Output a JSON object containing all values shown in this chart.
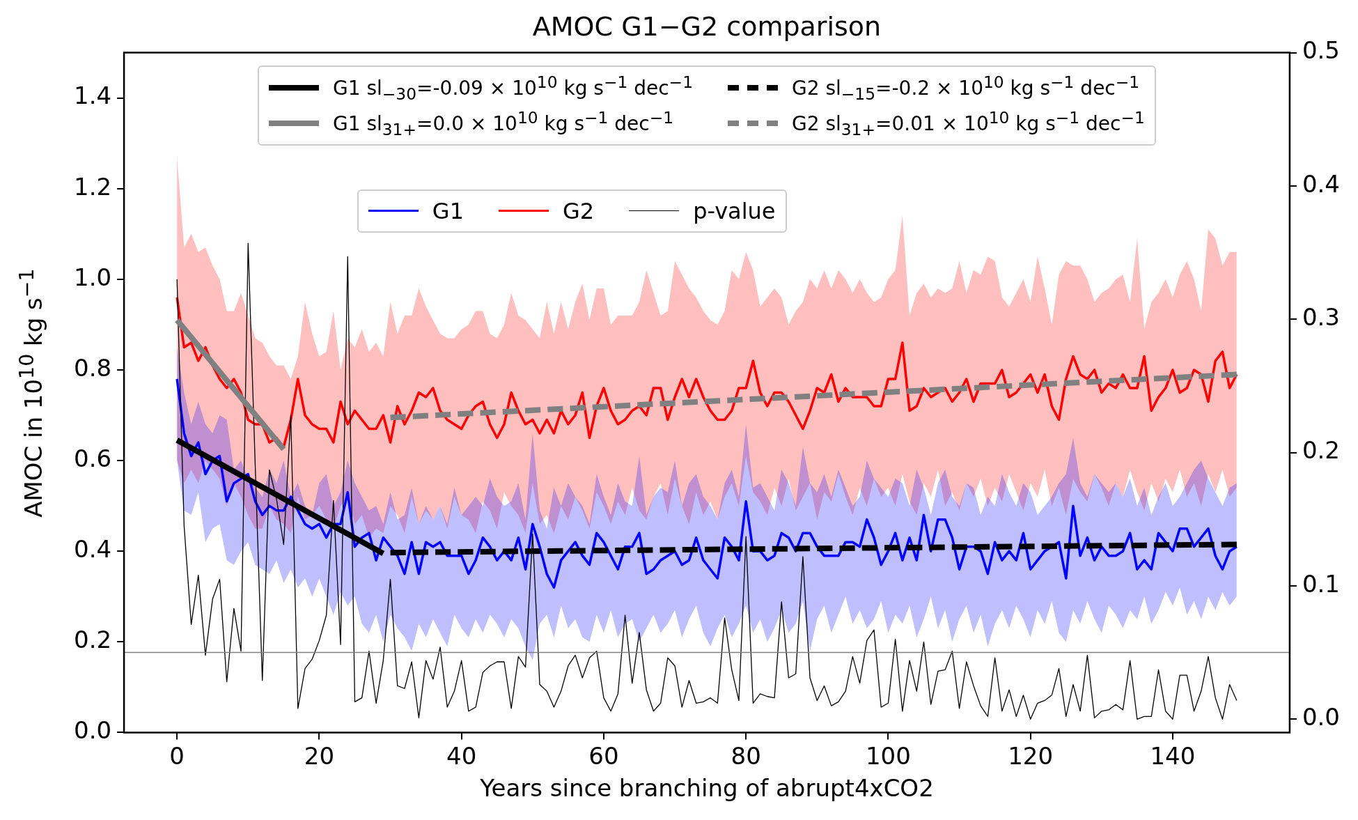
{
  "chart_data": {
    "type": "line",
    "title": "AMOC G1−G2 comparison",
    "xlabel": "Years since branching of abrupt4xCO2",
    "ylabel": "AMOC in 10$^{10}$ kg s$^{−1}$",
    "x": [
      0,
      1,
      2,
      3,
      4,
      5,
      6,
      7,
      8,
      9,
      10,
      11,
      12,
      13,
      14,
      15,
      16,
      17,
      18,
      19,
      20,
      21,
      22,
      23,
      24,
      25,
      26,
      27,
      28,
      29,
      30,
      31,
      32,
      33,
      34,
      35,
      36,
      37,
      38,
      39,
      40,
      41,
      42,
      43,
      44,
      45,
      46,
      47,
      48,
      49,
      50,
      51,
      52,
      53,
      54,
      55,
      56,
      57,
      58,
      59,
      60,
      61,
      62,
      63,
      64,
      65,
      66,
      67,
      68,
      69,
      70,
      71,
      72,
      73,
      74,
      75,
      76,
      77,
      78,
      79,
      80,
      81,
      82,
      83,
      84,
      85,
      86,
      87,
      88,
      89,
      90,
      91,
      92,
      93,
      94,
      95,
      96,
      97,
      98,
      99,
      100,
      101,
      102,
      103,
      104,
      105,
      106,
      107,
      108,
      109,
      110,
      111,
      112,
      113,
      114,
      115,
      116,
      117,
      118,
      119,
      120,
      121,
      122,
      123,
      124,
      125,
      126,
      127,
      128,
      129,
      130,
      131,
      132,
      133,
      134,
      135,
      136,
      137,
      138,
      139,
      140,
      141,
      142,
      143,
      144,
      145,
      146,
      147,
      148,
      149
    ],
    "xlim": [
      -7.45,
      156.45
    ],
    "xticks": [
      0,
      20,
      40,
      60,
      80,
      100,
      120,
      140
    ],
    "ylim": [
      0,
      1.5
    ],
    "yticks": [
      {
        "value": 0,
        "label": "0.0"
      },
      {
        "value": 0.2,
        "label": "0.2"
      },
      {
        "value": 0.4,
        "label": "0.4"
      },
      {
        "value": 0.6,
        "label": "0.6"
      },
      {
        "value": 0.8,
        "label": "0.8"
      },
      {
        "value": 1,
        "label": "1.0"
      },
      {
        "value": 1.2,
        "label": "1.2"
      },
      {
        "value": 1.4,
        "label": "1.4"
      }
    ],
    "y2lim": [
      -0.01,
      0.5
    ],
    "y2ticks": [
      {
        "value": 0,
        "label": "0.0"
      },
      {
        "value": 0.1,
        "label": "0.1"
      },
      {
        "value": 0.2,
        "label": "0.2"
      },
      {
        "value": 0.3,
        "label": "0.3"
      },
      {
        "value": 0.4,
        "label": "0.4"
      },
      {
        "value": 0.5,
        "label": "0.5"
      }
    ],
    "legend": "top",
    "marker": "none",
    "ref_lines": [
      {
        "axis": "y2",
        "value": 0.05,
        "color": "#808080"
      }
    ],
    "series": [
      {
        "name": "G1",
        "color": "#0000ff",
        "line_style": "solid",
        "values": [
          0.78,
          0.66,
          0.61,
          0.64,
          0.57,
          0.6,
          0.61,
          0.51,
          0.55,
          0.56,
          0.57,
          0.51,
          0.48,
          0.5,
          0.49,
          0.49,
          0.52,
          0.49,
          0.46,
          0.45,
          0.46,
          0.43,
          0.46,
          0.46,
          0.53,
          0.41,
          0.43,
          0.44,
          0.38,
          0.43,
          0.41,
          0.39,
          0.35,
          0.42,
          0.35,
          0.42,
          0.41,
          0.42,
          0.39,
          0.39,
          0.39,
          0.35,
          0.38,
          0.43,
          0.41,
          0.38,
          0.4,
          0.38,
          0.43,
          0.36,
          0.46,
          0.41,
          0.35,
          0.32,
          0.38,
          0.4,
          0.42,
          0.39,
          0.37,
          0.44,
          0.42,
          0.39,
          0.36,
          0.41,
          0.41,
          0.44,
          0.35,
          0.36,
          0.38,
          0.39,
          0.4,
          0.37,
          0.38,
          0.43,
          0.38,
          0.36,
          0.34,
          0.43,
          0.41,
          0.38,
          0.51,
          0.4,
          0.4,
          0.38,
          0.39,
          0.44,
          0.43,
          0.4,
          0.44,
          0.44,
          0.41,
          0.39,
          0.39,
          0.39,
          0.42,
          0.42,
          0.41,
          0.47,
          0.43,
          0.37,
          0.4,
          0.44,
          0.38,
          0.43,
          0.38,
          0.48,
          0.4,
          0.47,
          0.47,
          0.43,
          0.36,
          0.41,
          0.41,
          0.4,
          0.35,
          0.42,
          0.38,
          0.4,
          0.38,
          0.44,
          0.36,
          0.38,
          0.4,
          0.41,
          0.42,
          0.34,
          0.5,
          0.39,
          0.43,
          0.38,
          0.41,
          0.39,
          0.39,
          0.4,
          0.44,
          0.36,
          0.38,
          0.36,
          0.44,
          0.42,
          0.4,
          0.45,
          0.45,
          0.41,
          0.43,
          0.45,
          0.39,
          0.36,
          0.4,
          0.41
        ],
        "upper": [
          0.85,
          0.75,
          0.68,
          0.73,
          0.68,
          0.66,
          0.7,
          0.69,
          0.58,
          0.6,
          0.56,
          0.54,
          0.52,
          0.58,
          0.55,
          0.6,
          0.52,
          0.55,
          0.5,
          0.48,
          0.55,
          0.57,
          0.5,
          0.53,
          0.6,
          0.55,
          0.52,
          0.49,
          0.5,
          0.46,
          0.53,
          0.47,
          0.48,
          0.54,
          0.46,
          0.5,
          0.47,
          0.5,
          0.46,
          0.54,
          0.48,
          0.5,
          0.52,
          0.5,
          0.56,
          0.52,
          0.5,
          0.51,
          0.55,
          0.47,
          0.66,
          0.49,
          0.45,
          0.54,
          0.5,
          0.55,
          0.52,
          0.5,
          0.46,
          0.57,
          0.52,
          0.48,
          0.55,
          0.51,
          0.5,
          0.61,
          0.48,
          0.52,
          0.54,
          0.53,
          0.6,
          0.5,
          0.55,
          0.57,
          0.52,
          0.5,
          0.47,
          0.55,
          0.58,
          0.52,
          0.68,
          0.54,
          0.55,
          0.52,
          0.49,
          0.58,
          0.55,
          0.5,
          0.63,
          0.55,
          0.53,
          0.57,
          0.52,
          0.58,
          0.54,
          0.5,
          0.52,
          0.6,
          0.56,
          0.54,
          0.52,
          0.56,
          0.55,
          0.5,
          0.58,
          0.54,
          0.48,
          0.55,
          0.58,
          0.52,
          0.5,
          0.55,
          0.54,
          0.48,
          0.52,
          0.5,
          0.57,
          0.53,
          0.5,
          0.55,
          0.53,
          0.48,
          0.5,
          0.52,
          0.55,
          0.57,
          0.65,
          0.55,
          0.52,
          0.57,
          0.55,
          0.53,
          0.55,
          0.52,
          0.56,
          0.5,
          0.54,
          0.48,
          0.52,
          0.55,
          0.5,
          0.52,
          0.55,
          0.58,
          0.6,
          0.56,
          0.53,
          0.5,
          0.54,
          0.55
        ],
        "lower": [
          0.6,
          0.49,
          0.48,
          0.53,
          0.42,
          0.45,
          0.46,
          0.38,
          0.37,
          0.4,
          0.42,
          0.37,
          0.36,
          0.35,
          0.38,
          0.33,
          0.36,
          0.32,
          0.34,
          0.3,
          0.34,
          0.3,
          0.26,
          0.31,
          0.28,
          0.3,
          0.24,
          0.22,
          0.26,
          0.2,
          0.26,
          0.23,
          0.21,
          0.18,
          0.24,
          0.21,
          0.25,
          0.22,
          0.19,
          0.26,
          0.23,
          0.21,
          0.25,
          0.22,
          0.26,
          0.24,
          0.21,
          0.25,
          0.23,
          0.19,
          0.16,
          0.24,
          0.26,
          0.21,
          0.28,
          0.23,
          0.25,
          0.21,
          0.2,
          0.26,
          0.22,
          0.27,
          0.21,
          0.24,
          0.25,
          0.2,
          0.23,
          0.26,
          0.22,
          0.24,
          0.27,
          0.21,
          0.25,
          0.28,
          0.22,
          0.19,
          0.23,
          0.26,
          0.21,
          0.24,
          0.28,
          0.22,
          0.25,
          0.2,
          0.23,
          0.27,
          0.22,
          0.24,
          0.29,
          0.18,
          0.25,
          0.28,
          0.22,
          0.26,
          0.3,
          0.24,
          0.27,
          0.23,
          0.25,
          0.29,
          0.22,
          0.26,
          0.24,
          0.28,
          0.21,
          0.25,
          0.3,
          0.23,
          0.27,
          0.2,
          0.25,
          0.28,
          0.22,
          0.26,
          0.19,
          0.24,
          0.27,
          0.23,
          0.28,
          0.25,
          0.21,
          0.27,
          0.24,
          0.29,
          0.22,
          0.2,
          0.27,
          0.24,
          0.29,
          0.25,
          0.22,
          0.28,
          0.26,
          0.23,
          0.27,
          0.25,
          0.3,
          0.24,
          0.27,
          0.31,
          0.28,
          0.32,
          0.26,
          0.29,
          0.25,
          0.3,
          0.27,
          0.31,
          0.28,
          0.3
        ]
      },
      {
        "name": "G2",
        "color": "#ff0000",
        "line_style": "solid",
        "values": [
          0.96,
          0.85,
          0.86,
          0.82,
          0.85,
          0.81,
          0.78,
          0.76,
          0.78,
          0.75,
          0.69,
          0.68,
          0.68,
          0.64,
          0.65,
          0.63,
          0.69,
          0.78,
          0.7,
          0.68,
          0.67,
          0.67,
          0.64,
          0.73,
          0.68,
          0.71,
          0.69,
          0.67,
          0.67,
          0.7,
          0.64,
          0.72,
          0.68,
          0.71,
          0.75,
          0.74,
          0.76,
          0.71,
          0.69,
          0.68,
          0.67,
          0.7,
          0.72,
          0.73,
          0.68,
          0.65,
          0.68,
          0.75,
          0.71,
          0.68,
          0.69,
          0.66,
          0.69,
          0.66,
          0.71,
          0.68,
          0.7,
          0.75,
          0.65,
          0.72,
          0.76,
          0.71,
          0.68,
          0.69,
          0.71,
          0.72,
          0.7,
          0.76,
          0.76,
          0.69,
          0.74,
          0.78,
          0.74,
          0.78,
          0.74,
          0.71,
          0.69,
          0.69,
          0.71,
          0.76,
          0.76,
          0.82,
          0.75,
          0.72,
          0.75,
          0.75,
          0.73,
          0.7,
          0.67,
          0.71,
          0.76,
          0.75,
          0.79,
          0.73,
          0.76,
          0.74,
          0.74,
          0.74,
          0.72,
          0.72,
          0.78,
          0.78,
          0.86,
          0.71,
          0.72,
          0.76,
          0.74,
          0.75,
          0.76,
          0.73,
          0.75,
          0.78,
          0.73,
          0.77,
          0.77,
          0.77,
          0.8,
          0.74,
          0.75,
          0.77,
          0.79,
          0.75,
          0.79,
          0.72,
          0.69,
          0.78,
          0.83,
          0.79,
          0.78,
          0.8,
          0.75,
          0.77,
          0.76,
          0.79,
          0.76,
          0.76,
          0.83,
          0.71,
          0.74,
          0.76,
          0.8,
          0.75,
          0.76,
          0.8,
          0.79,
          0.73,
          0.82,
          0.84,
          0.76,
          0.79
        ],
        "upper": [
          1.27,
          1.07,
          1.1,
          1.06,
          1.07,
          1.03,
          1,
          0.93,
          0.93,
          0.97,
          0.92,
          0.87,
          0.86,
          0.83,
          0.81,
          0.81,
          0.78,
          0.83,
          0.95,
          0.88,
          0.83,
          0.84,
          0.93,
          0.8,
          0.87,
          0.85,
          0.89,
          0.84,
          0.86,
          0.83,
          0.95,
          0.88,
          0.92,
          0.92,
          0.98,
          0.94,
          0.91,
          0.88,
          0.87,
          0.87,
          0.89,
          0.9,
          0.93,
          0.93,
          0.88,
          0.87,
          0.9,
          0.97,
          0.92,
          0.91,
          0.89,
          0.87,
          0.95,
          0.88,
          0.95,
          0.89,
          0.95,
          0.99,
          0.91,
          0.98,
          0.98,
          0.9,
          0.92,
          0.92,
          0.92,
          0.95,
          1.02,
          0.97,
          0.92,
          0.93,
          1.04,
          1.01,
          0.98,
          0.96,
          0.93,
          0.91,
          0.9,
          0.93,
          1.02,
          1,
          1.06,
          1.02,
          0.94,
          0.96,
          0.98,
          0.96,
          0.9,
          0.93,
          0.95,
          1,
          0.98,
          1.02,
          0.98,
          1.02,
          1,
          0.97,
          1,
          0.97,
          0.95,
          0.96,
          1,
          1.02,
          1.14,
          0.92,
          0.97,
          0.99,
          0.96,
          0.98,
          0.97,
          0.98,
          1.04,
          0.97,
          1.02,
          1.01,
          1.05,
          1.04,
          0.96,
          0.94,
          0.97,
          1,
          0.95,
          1.05,
          0.98,
          0.9,
          1.01,
          1.04,
          1.03,
          1.03,
          1,
          0.95,
          0.97,
          0.98,
          1,
          1.01,
          0.95,
          1.09,
          0.89,
          0.95,
          0.97,
          1,
          0.96,
          1.01,
          1.04,
          1,
          0.93,
          1.11,
          1.09,
          1.03,
          1.06,
          1.06
        ],
        "lower": [
          0.6,
          0.55,
          0.58,
          0.55,
          0.6,
          0.58,
          0.56,
          0.5,
          0.55,
          0.52,
          0.48,
          0.45,
          0.45,
          0.5,
          0.47,
          0.46,
          0.44,
          0.52,
          0.47,
          0.48,
          0.5,
          0.47,
          0.45,
          0.5,
          0.52,
          0.46,
          0.48,
          0.43,
          0.45,
          0.44,
          0.5,
          0.48,
          0.44,
          0.52,
          0.46,
          0.49,
          0.47,
          0.5,
          0.45,
          0.52,
          0.48,
          0.47,
          0.44,
          0.51,
          0.49,
          0.45,
          0.53,
          0.5,
          0.48,
          0.44,
          0.55,
          0.46,
          0.48,
          0.44,
          0.5,
          0.47,
          0.52,
          0.49,
          0.45,
          0.53,
          0.5,
          0.46,
          0.51,
          0.48,
          0.54,
          0.49,
          0.47,
          0.52,
          0.55,
          0.48,
          0.56,
          0.5,
          0.46,
          0.53,
          0.48,
          0.51,
          0.47,
          0.52,
          0.55,
          0.5,
          0.61,
          0.53,
          0.51,
          0.48,
          0.54,
          0.5,
          0.56,
          0.49,
          0.52,
          0.55,
          0.47,
          0.53,
          0.51,
          0.57,
          0.52,
          0.48,
          0.54,
          0.5,
          0.56,
          0.52,
          0.54,
          0.5,
          0.57,
          0.51,
          0.48,
          0.55,
          0.52,
          0.58,
          0.5,
          0.53,
          0.49,
          0.55,
          0.52,
          0.56,
          0.5,
          0.54,
          0.51,
          0.57,
          0.53,
          0.49,
          0.55,
          0.52,
          0.58,
          0.5,
          0.54,
          0.48,
          0.56,
          0.53,
          0.51,
          0.57,
          0.54,
          0.5,
          0.55,
          0.52,
          0.58,
          0.53,
          0.49,
          0.55,
          0.51,
          0.56,
          0.53,
          0.58,
          0.52,
          0.55,
          0.5,
          0.57,
          0.53,
          0.58,
          0.52,
          0.54
        ]
      },
      {
        "name": "p-value",
        "color": "#000000",
        "axis": "y2",
        "line_style": "solid",
        "values": [
          0.33,
          0.145,
          0.071,
          0.108,
          0.048,
          0.09,
          0.105,
          0.028,
          0.083,
          0.051,
          0.357,
          0.19,
          0.029,
          0.187,
          0.165,
          0.131,
          0.228,
          0.008,
          0.038,
          0.045,
          0.059,
          0.078,
          0.164,
          0.056,
          0.347,
          0.013,
          0.016,
          0.051,
          0.012,
          0.044,
          0.105,
          0.025,
          0.023,
          0.043,
          0.001,
          0.044,
          0.03,
          0.054,
          0.009,
          0.021,
          0.044,
          0.006,
          0.009,
          0.035,
          0.04,
          0.043,
          0.043,
          0.008,
          0.047,
          0.039,
          0.139,
          0.026,
          0.021,
          0.009,
          0.021,
          0.04,
          0.048,
          0.031,
          0.046,
          0.051,
          0.016,
          0.006,
          0.019,
          0.078,
          0.027,
          0.065,
          0.022,
          0.006,
          0.012,
          0.046,
          0.04,
          0.009,
          0.029,
          0.012,
          0.013,
          0.016,
          0.012,
          0.076,
          0.037,
          0.014,
          0.137,
          0.012,
          0.019,
          0.017,
          0.016,
          0.088,
          0.031,
          0.034,
          0.122,
          0.031,
          0.014,
          0.025,
          0.01,
          0.013,
          0.021,
          0.047,
          0.027,
          0.059,
          0.067,
          0.009,
          0.012,
          0.06,
          0.006,
          0.044,
          0.021,
          0.058,
          0.011,
          0.036,
          0.037,
          0.051,
          0.008,
          0.043,
          0.025,
          0.01,
          0.002,
          0.046,
          0.006,
          0.022,
          0.002,
          0.018,
          0,
          0.012,
          0.014,
          0.018,
          0.038,
          0.002,
          0.026,
          0.006,
          0.048,
          0.001,
          0.006,
          0.007,
          0.011,
          0.007,
          0.044,
          0,
          0.002,
          0.002,
          0.037,
          0.006,
          0,
          0.033,
          0.033,
          0.006,
          0.021,
          0.047,
          0.016,
          0,
          0.026,
          0.014
        ]
      },
      {
        "name": "G1 sl$_{−30}$=-0.09 × 10$^{10}$ kg s$^{−1}$ dec$^{−1}$",
        "type": "line",
        "color": "#000000",
        "line_style": "solid",
        "x": [
          0,
          29
        ],
        "values": [
          0.645,
          0.395
        ]
      },
      {
        "name": "G1 sl$_{31+}$=0.0 × 10$^{10}$ kg s$^{−1}$ dec$^{−1}$",
        "type": "line",
        "color": "#808080",
        "line_style": "solid",
        "x": [
          0,
          15
        ],
        "values": [
          0.91,
          0.625
        ]
      },
      {
        "name": "G2 sl$_{−15}$=-0.2 × 10$^{10}$ kg s$^{−1}$ dec$^{−1}$",
        "type": "line",
        "color": "#000000",
        "line_style": "dashed",
        "x": [
          30,
          149
        ],
        "values": [
          0.397,
          0.415
        ]
      },
      {
        "name": "G2 sl$_{31+}$=0.01 × 10$^{10}$ kg s$^{−1}$ dec$^{−1}$",
        "type": "line",
        "color": "#808080",
        "line_style": "dashed",
        "x": [
          30,
          149
        ],
        "values": [
          0.695,
          0.79
        ]
      }
    ]
  }
}
